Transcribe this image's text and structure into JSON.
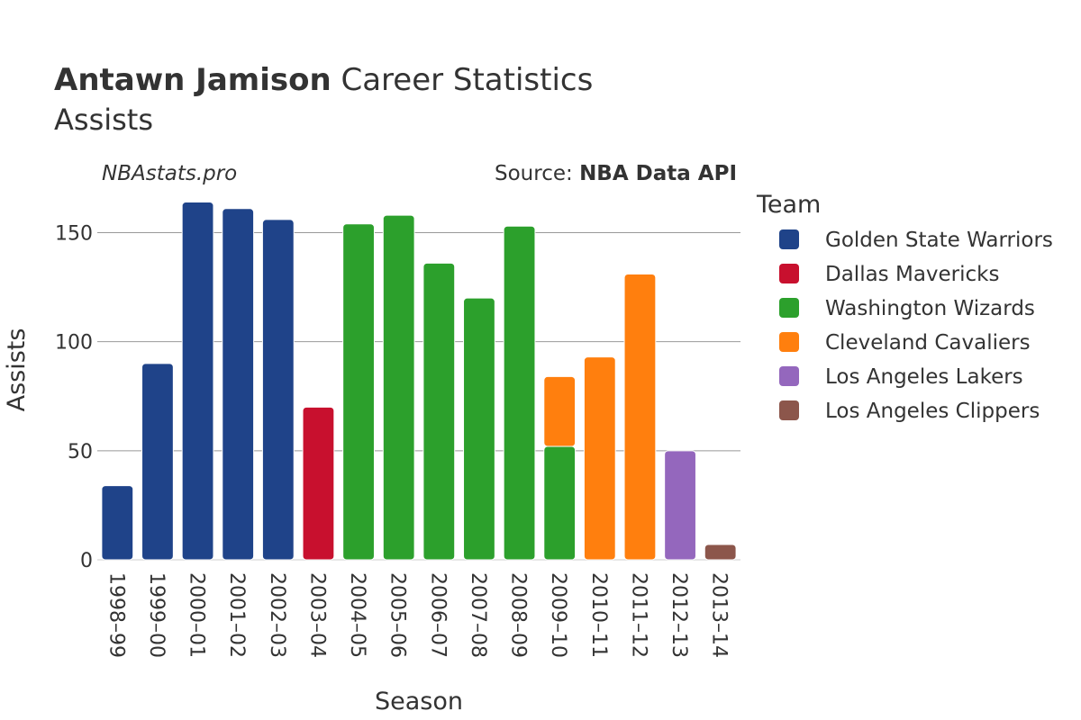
{
  "chart_data": {
    "type": "bar",
    "stacked": true,
    "title_bold": "Antawn Jamison",
    "title_rest": " Career Statistics",
    "subtitle": "Assists",
    "watermark": "NBAstats.pro",
    "source_label": "Source: ",
    "source_value": "NBA Data API",
    "xlabel": "Season",
    "ylabel": "Assists",
    "ylim": [
      0,
      170
    ],
    "yticks": [
      0,
      50,
      100,
      150
    ],
    "grid": true,
    "legend_title": "Team",
    "legend_position": "right",
    "categories": [
      "1998–99",
      "1999–00",
      "2000–01",
      "2001–02",
      "2002–03",
      "2003–04",
      "2004–05",
      "2005–06",
      "2006–07",
      "2007–08",
      "2008–09",
      "2009–10",
      "2010–11",
      "2011–12",
      "2012–13",
      "2013–14"
    ],
    "series": [
      {
        "name": "Golden State Warriors",
        "color": "#1f4389",
        "values": [
          34,
          90,
          164,
          161,
          156,
          0,
          0,
          0,
          0,
          0,
          0,
          0,
          0,
          0,
          0,
          0
        ]
      },
      {
        "name": "Dallas Mavericks",
        "color": "#c8102e",
        "values": [
          0,
          0,
          0,
          0,
          0,
          70,
          0,
          0,
          0,
          0,
          0,
          0,
          0,
          0,
          0,
          0
        ]
      },
      {
        "name": "Washington Wizards",
        "color": "#2ca02c",
        "values": [
          0,
          0,
          0,
          0,
          0,
          0,
          154,
          158,
          136,
          120,
          153,
          52,
          0,
          0,
          0,
          0
        ]
      },
      {
        "name": "Cleveland Cavaliers",
        "color": "#ff7f0e",
        "values": [
          0,
          0,
          0,
          0,
          0,
          0,
          0,
          0,
          0,
          0,
          0,
          32,
          93,
          131,
          0,
          0
        ]
      },
      {
        "name": "Los Angeles Lakers",
        "color": "#9467bd",
        "values": [
          0,
          0,
          0,
          0,
          0,
          0,
          0,
          0,
          0,
          0,
          0,
          0,
          0,
          0,
          50,
          0
        ]
      },
      {
        "name": "Los Angeles Clippers",
        "color": "#8c564b",
        "values": [
          0,
          0,
          0,
          0,
          0,
          0,
          0,
          0,
          0,
          0,
          0,
          0,
          0,
          0,
          0,
          7
        ]
      }
    ]
  }
}
